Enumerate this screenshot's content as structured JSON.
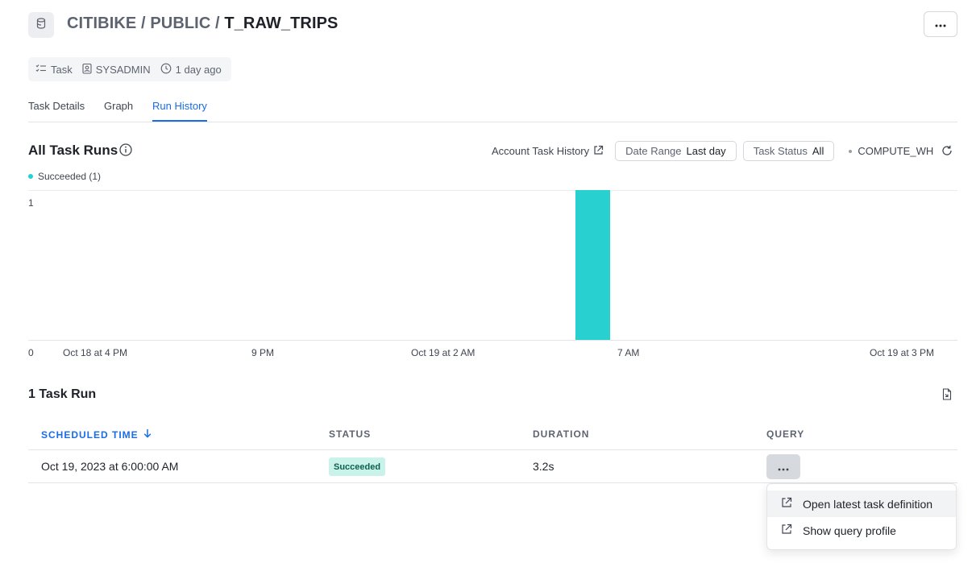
{
  "header": {
    "breadcrumb_db": "CITIBIKE",
    "sep1": " / ",
    "breadcrumb_schema": "PUBLIC",
    "sep2": " / ",
    "object_name": "T_RAW_TRIPS",
    "more_icon": "more-horizontal-icon",
    "object_icon": "database-icon"
  },
  "meta": {
    "type_label": "Task",
    "owner_label": "SYSADMIN",
    "updated_label": "1 day ago"
  },
  "tabs": [
    {
      "label": "Task Details",
      "active": false
    },
    {
      "label": "Graph",
      "active": false
    },
    {
      "label": "Run History",
      "active": true
    }
  ],
  "runs_section": {
    "title": "All Task Runs",
    "account_history_label": "Account Task History",
    "date_range_label": "Date Range",
    "date_range_value": "Last day",
    "task_status_label": "Task Status",
    "task_status_value": "All",
    "warehouse": "COMPUTE_WH",
    "legend_label": "Succeeded (1)"
  },
  "chart_data": {
    "type": "bar",
    "series": [
      {
        "name": "Succeeded",
        "color": "#29d0d0"
      }
    ],
    "x_tick_labels": [
      "Oct 18 at 4 PM",
      "9 PM",
      "Oct 19 at 2 AM",
      "7 AM",
      "Oct 19 at 3 PM"
    ],
    "y_tick_labels": [
      "1",
      "0"
    ],
    "ylim": [
      0,
      1
    ],
    "bars": [
      {
        "time": "Oct 19 at 6 AM",
        "value": 1
      }
    ],
    "grid": true,
    "legend_position": "top-left"
  },
  "table": {
    "title": "1 Task Run",
    "columns": [
      {
        "label": "SCHEDULED TIME",
        "sorted": "desc"
      },
      {
        "label": "STATUS"
      },
      {
        "label": "DURATION"
      },
      {
        "label": "QUERY"
      }
    ],
    "rows": [
      {
        "scheduled_time": "Oct 19, 2023 at 6:00:00 AM",
        "status": "Succeeded",
        "duration": "3.2s"
      }
    ]
  },
  "query_menu": {
    "items": [
      {
        "label": "Open latest task definition",
        "icon": "external-link-icon"
      },
      {
        "label": "Show query profile",
        "icon": "external-link-icon"
      }
    ]
  },
  "colors": {
    "accent": "#1a6ce7",
    "success_bar": "#29d0d0",
    "success_badge_bg": "#c9f3ea",
    "success_badge_text": "#0d5f4c"
  }
}
